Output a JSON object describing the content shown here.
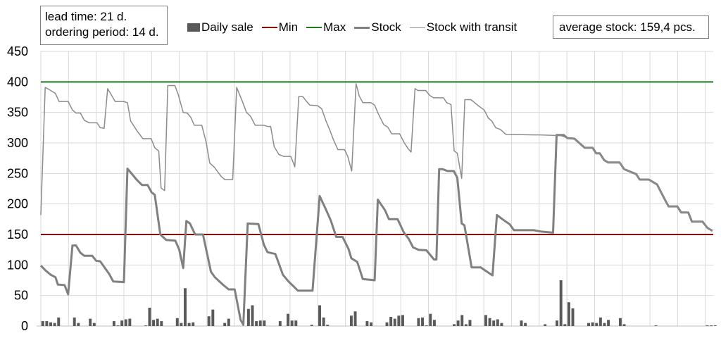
{
  "chart_data": {
    "type": "bar+line",
    "title": "",
    "xlabel": "",
    "ylabel": "",
    "ylim": [
      0,
      450
    ],
    "yticks": [
      0,
      50,
      100,
      150,
      200,
      250,
      300,
      350,
      400,
      450
    ],
    "x_days": 170,
    "x_grid_every_days": 7,
    "grid": true,
    "legend_position": "top",
    "annotations": [
      {
        "id": "params",
        "lines": [
          "lead time: 21 d.",
          "ordering period: 14 d."
        ]
      },
      {
        "id": "avg",
        "text": "average stock: 159,4 pcs."
      }
    ],
    "series": [
      {
        "name": "Daily sale",
        "type": "bar",
        "color": "#595959",
        "values": [
          8,
          8,
          6,
          5,
          14,
          0,
          0,
          0,
          14,
          5,
          0,
          0,
          12,
          5,
          0,
          0,
          0,
          0,
          8,
          1,
          9,
          11,
          12,
          0,
          0,
          0,
          1,
          30,
          10,
          12,
          8,
          0,
          0,
          0,
          13,
          5,
          62,
          5,
          6,
          0,
          0,
          0,
          16,
          27,
          0,
          0,
          5,
          12,
          0,
          0,
          0,
          0,
          28,
          34,
          8,
          9,
          9,
          0,
          0,
          0,
          8,
          0,
          20,
          9,
          9,
          0,
          0,
          0,
          2,
          0,
          34,
          14,
          2,
          0,
          0,
          0,
          0,
          0,
          17,
          24,
          0,
          0,
          8,
          6,
          0,
          0,
          0,
          6,
          15,
          12,
          17,
          18,
          0,
          0,
          0,
          13,
          14,
          1,
          20,
          10,
          0,
          0,
          0,
          0,
          3,
          9,
          18,
          3,
          10,
          0,
          0,
          0,
          18,
          13,
          9,
          11,
          5,
          0,
          0,
          0,
          0,
          9,
          5,
          0,
          0,
          0,
          0,
          3,
          0,
          0,
          9,
          75,
          3,
          39,
          29,
          0,
          0,
          0,
          5,
          6,
          5,
          14,
          5,
          10,
          0,
          0,
          13,
          3,
          0,
          0,
          0,
          0,
          0,
          0,
          0,
          1,
          0,
          0,
          0,
          0,
          0,
          0,
          0,
          0,
          0,
          0,
          0,
          0,
          1,
          1,
          1
        ]
      },
      {
        "name": "Min",
        "type": "line",
        "color": "#8b0000",
        "constant": 150
      },
      {
        "name": "Max",
        "type": "line",
        "color": "#1e7b1e",
        "constant": 400
      },
      {
        "name": "Stock",
        "type": "line",
        "color": "#808080",
        "width": 3,
        "points": [
          [
            0,
            99
          ],
          [
            1.2,
            91
          ],
          [
            2.5,
            84
          ],
          [
            3.7,
            80
          ],
          [
            4.3,
            68
          ],
          [
            6,
            67
          ],
          [
            6.9,
            52
          ],
          [
            8,
            132
          ],
          [
            8.9,
            132
          ],
          [
            10,
            120
          ],
          [
            11,
            115
          ],
          [
            13,
            115
          ],
          [
            14,
            107
          ],
          [
            15,
            106
          ],
          [
            17.3,
            85
          ],
          [
            18.3,
            73
          ],
          [
            21,
            72
          ],
          [
            21.9,
            258
          ],
          [
            24.2,
            240
          ],
          [
            25.6,
            231
          ],
          [
            27,
            231
          ],
          [
            28,
            219
          ],
          [
            28.8,
            215
          ],
          [
            30.2,
            150
          ],
          [
            31.7,
            141
          ],
          [
            34,
            140
          ],
          [
            35,
            125
          ],
          [
            36,
            95
          ],
          [
            36.8,
            172
          ],
          [
            37.7,
            168
          ],
          [
            39,
            150
          ],
          [
            41,
            150
          ],
          [
            43,
            89
          ],
          [
            44,
            80
          ],
          [
            46,
            68
          ],
          [
            47.5,
            60
          ],
          [
            49,
            60
          ],
          [
            50.5,
            10
          ],
          [
            51.2,
            2
          ],
          [
            52.3,
            168
          ],
          [
            55,
            167
          ],
          [
            56.4,
            133
          ],
          [
            57.3,
            121
          ],
          [
            59.3,
            118
          ],
          [
            61.2,
            84
          ],
          [
            62.6,
            73
          ],
          [
            65,
            58
          ],
          [
            68.7,
            58
          ],
          [
            70.5,
            213
          ],
          [
            72,
            192
          ],
          [
            73.3,
            173
          ],
          [
            74.7,
            146
          ],
          [
            76.3,
            146
          ],
          [
            77.8,
            126
          ],
          [
            78.5,
            111
          ],
          [
            80,
            105
          ],
          [
            81.4,
            77
          ],
          [
            84.4,
            75
          ],
          [
            85.2,
            207
          ],
          [
            87,
            190
          ],
          [
            88,
            175
          ],
          [
            90.2,
            175
          ],
          [
            91.8,
            153
          ],
          [
            93,
            143
          ],
          [
            94.1,
            129
          ],
          [
            95.5,
            125
          ],
          [
            97.5,
            124
          ],
          [
            99.4,
            109
          ],
          [
            100,
            109
          ],
          [
            100.7,
            257
          ],
          [
            101.6,
            257
          ],
          [
            102.8,
            254
          ],
          [
            104.4,
            254
          ],
          [
            105.3,
            243
          ],
          [
            106.4,
            168
          ],
          [
            107.1,
            165
          ],
          [
            108.9,
            96
          ],
          [
            111.2,
            96
          ],
          [
            114.2,
            83
          ],
          [
            115.3,
            182
          ],
          [
            116.7,
            175
          ],
          [
            117.8,
            170
          ],
          [
            118.5,
            167
          ],
          [
            119.6,
            157
          ],
          [
            124.6,
            157
          ],
          [
            126.3,
            155
          ],
          [
            129.5,
            153
          ],
          [
            130.4,
            313
          ],
          [
            132.2,
            313
          ],
          [
            133.1,
            308
          ],
          [
            134.9,
            307
          ],
          [
            137.5,
            292
          ],
          [
            139.5,
            292
          ],
          [
            140.4,
            283
          ],
          [
            141.3,
            283
          ],
          [
            142.4,
            272
          ],
          [
            143.4,
            268
          ],
          [
            146.3,
            268
          ],
          [
            147.5,
            257
          ],
          [
            148.6,
            254
          ],
          [
            150.5,
            249
          ],
          [
            151.4,
            240
          ],
          [
            153.7,
            240
          ],
          [
            155.8,
            232
          ],
          [
            157.7,
            208
          ],
          [
            158.7,
            196
          ],
          [
            160.9,
            196
          ],
          [
            161.9,
            186
          ],
          [
            163.7,
            186
          ],
          [
            164.6,
            171
          ],
          [
            167.3,
            171
          ],
          [
            168.5,
            161
          ],
          [
            169.8,
            156
          ]
        ]
      },
      {
        "name": "Stock with transit",
        "type": "line",
        "color": "#8c8c8c",
        "width": 1.5,
        "points": [
          [
            0,
            182
          ],
          [
            1.1,
            391
          ],
          [
            2.5,
            386
          ],
          [
            3.7,
            381
          ],
          [
            4.6,
            368
          ],
          [
            6.9,
            368
          ],
          [
            8,
            354
          ],
          [
            8.9,
            349
          ],
          [
            10,
            349
          ],
          [
            11,
            337
          ],
          [
            12.3,
            333
          ],
          [
            14.2,
            333
          ],
          [
            15,
            325
          ],
          [
            16,
            324
          ],
          [
            16.9,
            389
          ],
          [
            18.8,
            368
          ],
          [
            20.9,
            368
          ],
          [
            21.9,
            366
          ],
          [
            22.7,
            336
          ],
          [
            24.3,
            320
          ],
          [
            25.8,
            307
          ],
          [
            27.9,
            307
          ],
          [
            28.8,
            292
          ],
          [
            29.8,
            287
          ],
          [
            30.4,
            226
          ],
          [
            31.3,
            222
          ],
          [
            32.1,
            394
          ],
          [
            33.9,
            394
          ],
          [
            34.8,
            378
          ],
          [
            36,
            350
          ],
          [
            37,
            349
          ],
          [
            37.9,
            342
          ],
          [
            38.8,
            329
          ],
          [
            40.7,
            329
          ],
          [
            41.8,
            301
          ],
          [
            42.7,
            267
          ],
          [
            43.9,
            260
          ],
          [
            45.6,
            245
          ],
          [
            46.5,
            240
          ],
          [
            48.5,
            240
          ],
          [
            49.5,
            391
          ],
          [
            50.9,
            369
          ],
          [
            52,
            350
          ],
          [
            53,
            344
          ],
          [
            54.2,
            329
          ],
          [
            56.4,
            329
          ],
          [
            57.3,
            327
          ],
          [
            58.1,
            327
          ],
          [
            59,
            294
          ],
          [
            60.2,
            281
          ],
          [
            61.4,
            278
          ],
          [
            63.2,
            278
          ],
          [
            64.2,
            261
          ],
          [
            65.2,
            376
          ],
          [
            66.2,
            376
          ],
          [
            67.2,
            368
          ],
          [
            68,
            362
          ],
          [
            70,
            361
          ],
          [
            71,
            356
          ],
          [
            72.1,
            336
          ],
          [
            73,
            322
          ],
          [
            74,
            305
          ],
          [
            75.1,
            289
          ],
          [
            76.8,
            289
          ],
          [
            77.6,
            278
          ],
          [
            78.6,
            254
          ],
          [
            79.7,
            397
          ],
          [
            80.5,
            377
          ],
          [
            81.4,
            366
          ],
          [
            83.4,
            366
          ],
          [
            84.4,
            362
          ],
          [
            85.3,
            348
          ],
          [
            86.7,
            330
          ],
          [
            87.7,
            326
          ],
          [
            88.7,
            315
          ],
          [
            90.7,
            315
          ],
          [
            91.9,
            300
          ],
          [
            92.8,
            291
          ],
          [
            93.6,
            285
          ],
          [
            94.6,
            389
          ],
          [
            95.3,
            386
          ],
          [
            97.3,
            386
          ],
          [
            98.3,
            378
          ],
          [
            99.3,
            374
          ],
          [
            101.8,
            374
          ],
          [
            102.6,
            366
          ],
          [
            103.7,
            363
          ],
          [
            104.5,
            287
          ],
          [
            105.3,
            283
          ],
          [
            106.4,
            242
          ],
          [
            107.2,
            371
          ],
          [
            108.7,
            371
          ],
          [
            109.5,
            367
          ],
          [
            110.8,
            360
          ],
          [
            112.1,
            354
          ],
          [
            113.1,
            341
          ],
          [
            114,
            336
          ],
          [
            115,
            325
          ],
          [
            116.2,
            322
          ],
          [
            117.6,
            314
          ],
          [
            127,
            313
          ],
          [
            131.5,
            312
          ],
          [
            133.1,
            308
          ],
          [
            134.9,
            307
          ],
          [
            137.5,
            292
          ],
          [
            139.5,
            292
          ],
          [
            140.4,
            283
          ],
          [
            141.3,
            283
          ],
          [
            142.4,
            272
          ],
          [
            143.4,
            268
          ],
          [
            146.3,
            268
          ],
          [
            147.5,
            257
          ],
          [
            148.6,
            254
          ],
          [
            150.5,
            249
          ],
          [
            151.4,
            240
          ],
          [
            153.7,
            240
          ],
          [
            155.8,
            232
          ],
          [
            157.7,
            208
          ],
          [
            158.7,
            196
          ],
          [
            160.9,
            196
          ],
          [
            161.9,
            186
          ],
          [
            163.7,
            186
          ],
          [
            164.6,
            171
          ],
          [
            167.3,
            171
          ],
          [
            168.5,
            161
          ],
          [
            169.8,
            156
          ]
        ]
      }
    ]
  },
  "legend": {
    "items": [
      {
        "label": "Daily sale",
        "kind": "box",
        "color": "#595959"
      },
      {
        "label": "Min",
        "kind": "line",
        "color": "#8b0000"
      },
      {
        "label": "Max",
        "kind": "line",
        "color": "#1e7b1e"
      },
      {
        "label": "Stock",
        "kind": "thick",
        "color": "#808080"
      },
      {
        "label": "Stock with transit",
        "kind": "thin",
        "color": "#8c8c8c"
      }
    ]
  },
  "params_box": {
    "line1": "lead time: 21 d.",
    "line2": "ordering period: 14 d."
  },
  "avg_box": {
    "text": "average stock: 159,4 pcs."
  }
}
